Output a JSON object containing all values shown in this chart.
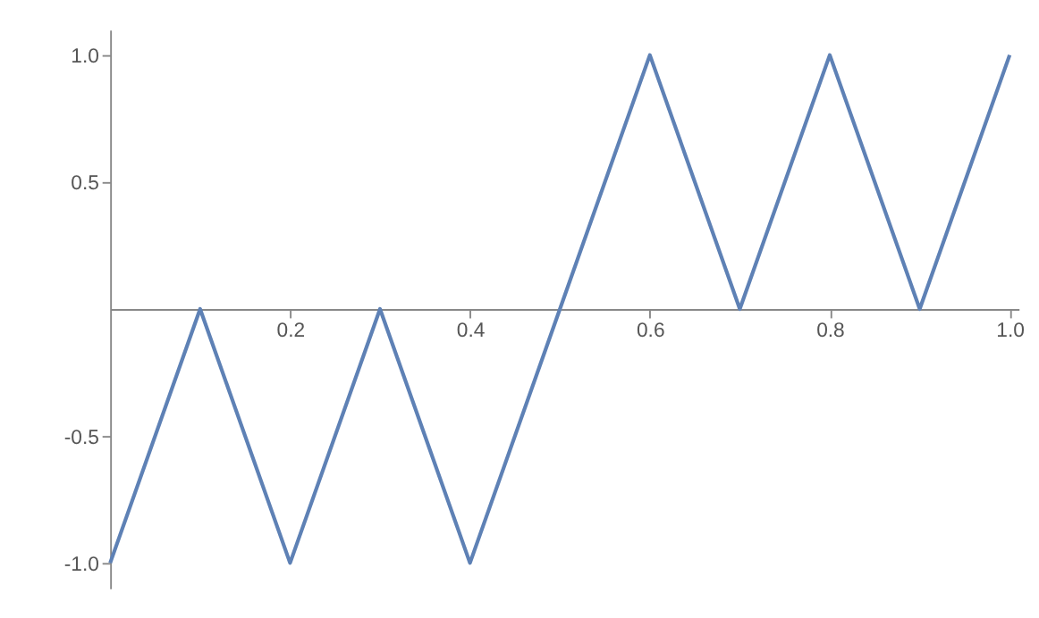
{
  "chart_data": {
    "type": "line",
    "x": [
      0,
      0.1,
      0.2,
      0.3,
      0.4,
      0.5,
      0.6,
      0.7,
      0.8,
      0.9,
      1.0
    ],
    "series": [
      {
        "color": "#5e81b5",
        "values": [
          -1,
          0,
          -1,
          0,
          -1,
          0,
          1,
          0,
          1,
          0,
          1
        ]
      }
    ],
    "xlim": [
      0,
      1.01
    ],
    "ylim": [
      -1.1,
      1.1
    ],
    "xticks": [
      {
        "value": 0.2,
        "label": "0.2"
      },
      {
        "value": 0.4,
        "label": "0.4"
      },
      {
        "value": 0.6,
        "label": "0.6"
      },
      {
        "value": 0.8,
        "label": "0.8"
      },
      {
        "value": 1.0,
        "label": "1.0"
      }
    ],
    "yticks": [
      {
        "value": -1.0,
        "label": "-1.0"
      },
      {
        "value": -0.5,
        "label": "-0.5"
      },
      {
        "value": 0.5,
        "label": "0.5"
      },
      {
        "value": 1.0,
        "label": "1.0"
      }
    ],
    "grid": false,
    "marker": "none",
    "line_style": "solid"
  }
}
